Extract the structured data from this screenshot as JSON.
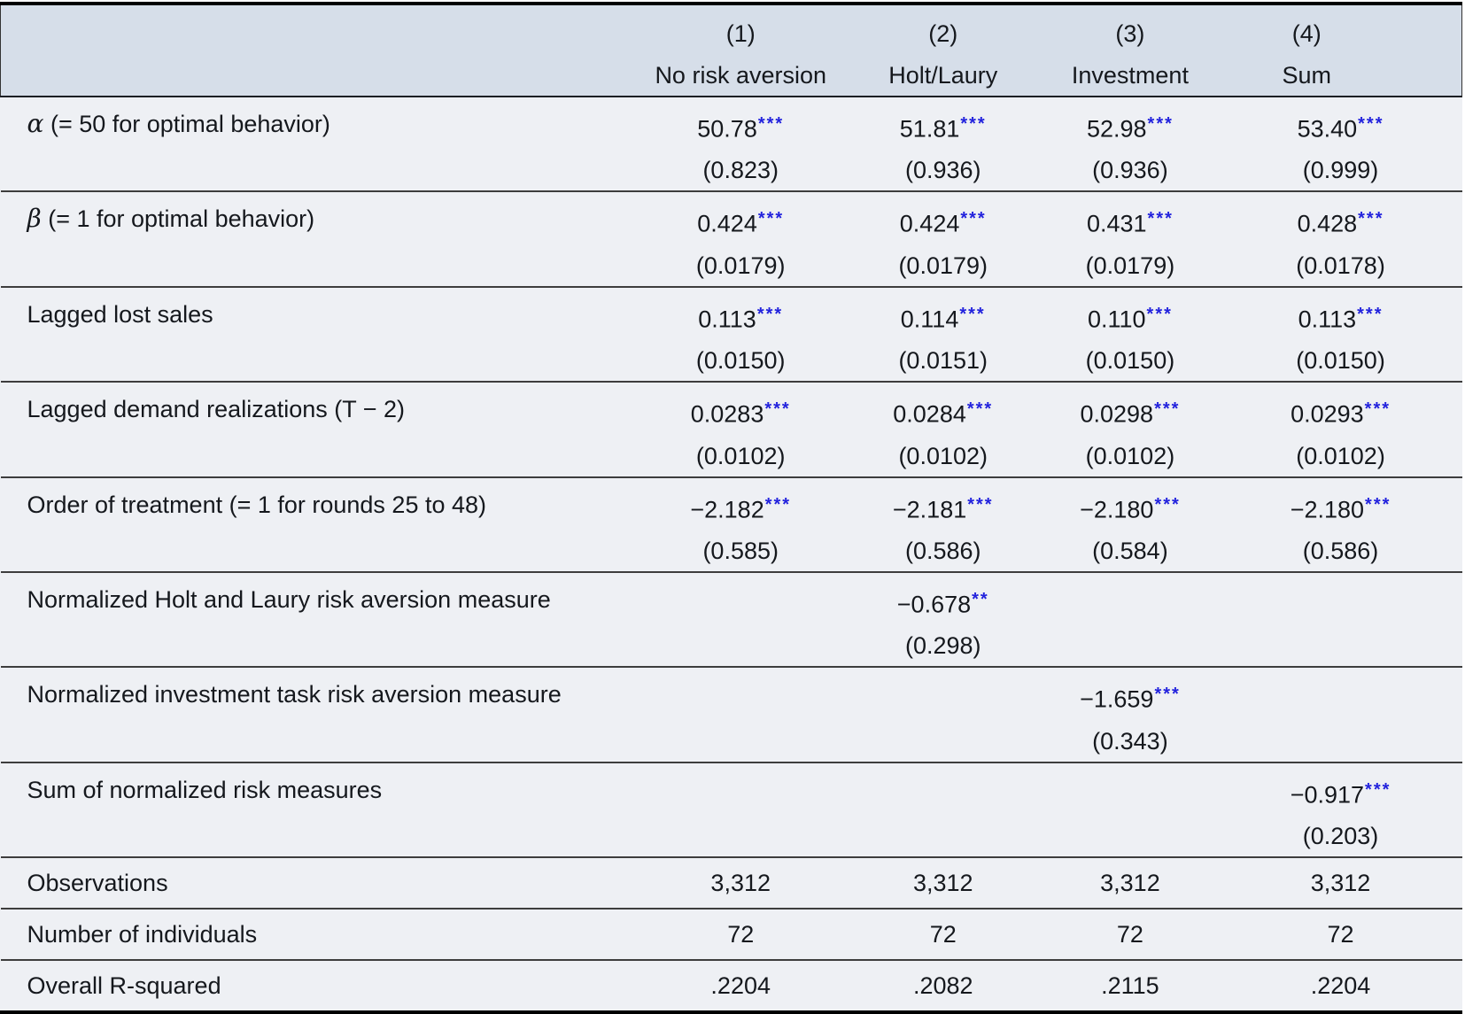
{
  "table": {
    "colors": {
      "header_bg": "#d6dee9",
      "body_bg": "#eef0f4",
      "star_color": "#2222dd",
      "text_color": "#15181d"
    },
    "columns": [
      {
        "number": "(1)",
        "label": "No risk aversion"
      },
      {
        "number": "(2)",
        "label": "Holt/Laury"
      },
      {
        "number": "(3)",
        "label": "Investment"
      },
      {
        "number": "(4)",
        "label": "Sum"
      }
    ],
    "rows": [
      {
        "prefix": "α",
        "label": " (= 50 for optimal behavior)",
        "cells": [
          {
            "est": "50.78",
            "stars": "***",
            "se": "(0.823)"
          },
          {
            "est": "51.81",
            "stars": "***",
            "se": "(0.936)"
          },
          {
            "est": "52.98",
            "stars": "***",
            "se": "(0.936)"
          },
          {
            "est": "53.40",
            "stars": "***",
            "se": "(0.999)"
          }
        ]
      },
      {
        "prefix": "β",
        "label": " (= 1 for optimal behavior)",
        "cells": [
          {
            "est": "0.424",
            "stars": "***",
            "se": "(0.0179)"
          },
          {
            "est": "0.424",
            "stars": "***",
            "se": "(0.0179)"
          },
          {
            "est": "0.431",
            "stars": "***",
            "se": "(0.0179)"
          },
          {
            "est": "0.428",
            "stars": "***",
            "se": "(0.0178)"
          }
        ]
      },
      {
        "prefix": "",
        "label": "Lagged lost sales",
        "cells": [
          {
            "est": "0.113",
            "stars": "***",
            "se": "(0.0150)"
          },
          {
            "est": "0.114",
            "stars": "***",
            "se": "(0.0151)"
          },
          {
            "est": "0.110",
            "stars": "***",
            "se": "(0.0150)"
          },
          {
            "est": "0.113",
            "stars": "***",
            "se": "(0.0150)"
          }
        ]
      },
      {
        "prefix": "",
        "label": "Lagged demand realizations (T − 2)",
        "cells": [
          {
            "est": "0.0283",
            "stars": "***",
            "se": "(0.0102)"
          },
          {
            "est": "0.0284",
            "stars": "***",
            "se": "(0.0102)"
          },
          {
            "est": "0.0298",
            "stars": "***",
            "se": "(0.0102)"
          },
          {
            "est": "0.0293",
            "stars": "***",
            "se": "(0.0102)"
          }
        ]
      },
      {
        "prefix": "",
        "label": "Order of treatment (= 1 for rounds 25 to 48)",
        "cells": [
          {
            "est": "−2.182",
            "stars": "***",
            "se": "(0.585)"
          },
          {
            "est": "−2.181",
            "stars": "***",
            "se": "(0.586)"
          },
          {
            "est": "−2.180",
            "stars": "***",
            "se": "(0.584)"
          },
          {
            "est": "−2.180",
            "stars": "***",
            "se": "(0.586)"
          }
        ]
      },
      {
        "prefix": "",
        "label": "Normalized Holt and Laury risk aversion measure",
        "cells": [
          {
            "est": "",
            "stars": "",
            "se": ""
          },
          {
            "est": "−0.678",
            "stars": "**",
            "se": "(0.298)"
          },
          {
            "est": "",
            "stars": "",
            "se": ""
          },
          {
            "est": "",
            "stars": "",
            "se": ""
          }
        ]
      },
      {
        "prefix": "",
        "label": "Normalized investment task risk aversion measure",
        "cells": [
          {
            "est": "",
            "stars": "",
            "se": ""
          },
          {
            "est": "",
            "stars": "",
            "se": ""
          },
          {
            "est": "−1.659",
            "stars": "***",
            "se": "(0.343)"
          },
          {
            "est": "",
            "stars": "",
            "se": ""
          }
        ]
      },
      {
        "prefix": "",
        "label": "Sum of normalized risk measures",
        "cells": [
          {
            "est": "",
            "stars": "",
            "se": ""
          },
          {
            "est": "",
            "stars": "",
            "se": ""
          },
          {
            "est": "",
            "stars": "",
            "se": ""
          },
          {
            "est": "−0.917",
            "stars": "***",
            "se": "(0.203)"
          }
        ]
      }
    ],
    "stats": [
      {
        "label": "Observations",
        "values": [
          "3,312",
          "3,312",
          "3,312",
          "3,312"
        ]
      },
      {
        "label": "Number of individuals",
        "values": [
          "72",
          "72",
          "72",
          "72"
        ]
      },
      {
        "label": "Overall R-squared",
        "values": [
          ".2204",
          ".2082",
          ".2115",
          ".2204"
        ]
      }
    ]
  }
}
